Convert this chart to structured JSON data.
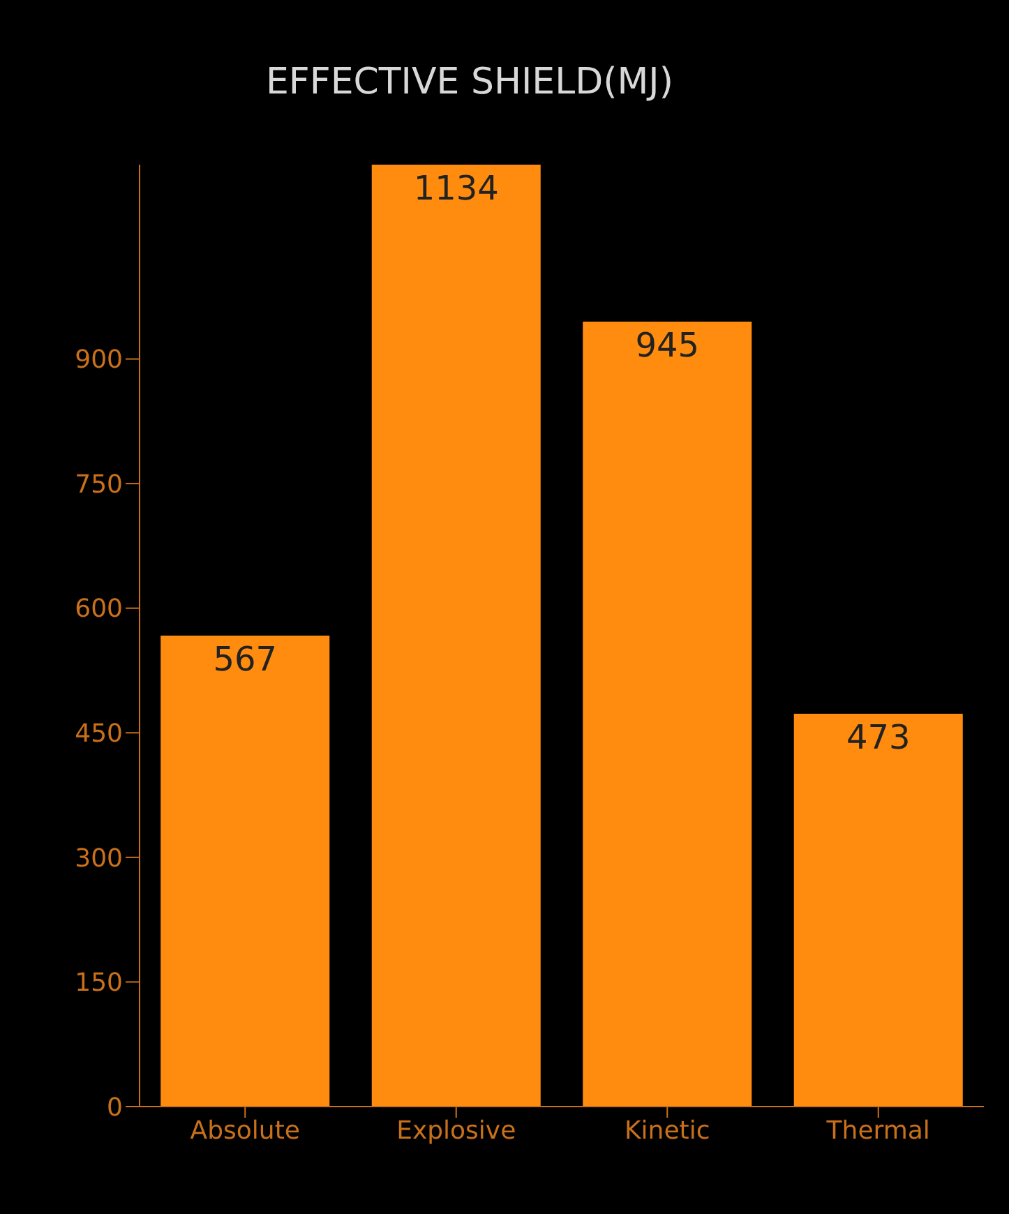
{
  "chart_data": {
    "type": "bar",
    "title": "EFFECTIVE SHIELD(MJ)",
    "categories": [
      "Absolute",
      "Explosive",
      "Kinetic",
      "Thermal"
    ],
    "values": [
      567,
      1134,
      945,
      473
    ],
    "color": "#ff8c0f",
    "ylim": [
      0,
      1134
    ],
    "yticks": [
      0,
      150,
      300,
      450,
      600,
      750,
      900
    ],
    "grid": false,
    "data_labels": true
  }
}
